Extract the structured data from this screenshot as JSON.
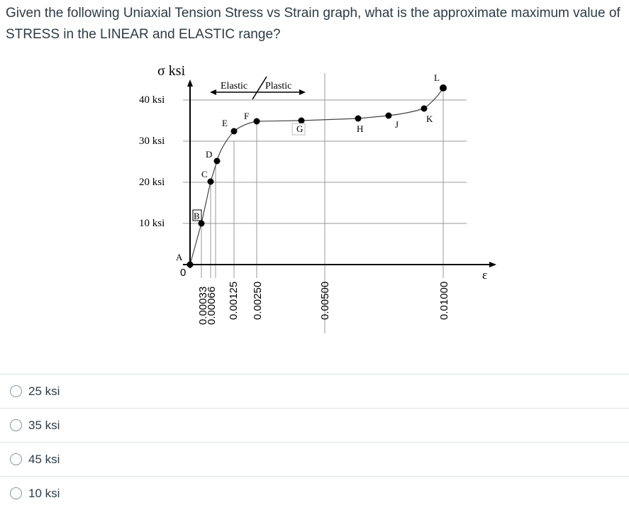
{
  "question": {
    "text": "Given the following Uniaxial Tension Stress vs Strain graph, what is the approximate maximum value of STRESS in the LINEAR and ELASTIC range?"
  },
  "options": [
    {
      "label": "25 ksi",
      "selected": false
    },
    {
      "label": "35 ksi",
      "selected": false
    },
    {
      "label": "45 ksi",
      "selected": false
    },
    {
      "label": "10 ksi",
      "selected": false
    }
  ],
  "chart_data": {
    "type": "line",
    "ylabel": "σ ksi",
    "xlabel": "ε",
    "y_ticks": [
      "40 ksi",
      "30 ksi",
      "20 ksi",
      "10 ksi"
    ],
    "x_ticks": [
      "0",
      "0.00033",
      "0.00066",
      "0.00125",
      "0.00250",
      "0.00500",
      "0.01000"
    ],
    "origin_label": "A",
    "region_labels": {
      "elastic": "Elastic",
      "plastic": "Plastic"
    },
    "points": [
      {
        "name": "A",
        "x": 0,
        "y": 0
      },
      {
        "name": "B",
        "x": 0.00033,
        "y": 10
      },
      {
        "name": "C",
        "x": 0.00066,
        "y": 20
      },
      {
        "name": "D",
        "x": 0.0009,
        "y": 25
      },
      {
        "name": "E",
        "x": 0.00165,
        "y": 33
      },
      {
        "name": "F",
        "x": 0.0028,
        "y": 35
      },
      {
        "name": "G",
        "x": 0.0043,
        "y": 36
      },
      {
        "name": "H",
        "x": 0.0068,
        "y": 36
      },
      {
        "name": "J",
        "x": 0.0081,
        "y": 36
      },
      {
        "name": "K",
        "x": 0.0092,
        "y": 38
      },
      {
        "name": "L",
        "x": 0.01,
        "y": 44
      }
    ],
    "grid": true
  }
}
